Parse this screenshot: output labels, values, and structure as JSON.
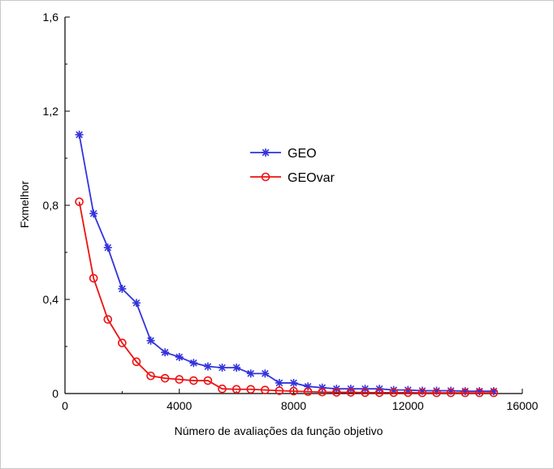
{
  "chart_data": {
    "type": "line",
    "title": "",
    "xlabel": "Número de avaliações da função objetivo",
    "ylabel": "Fxmelhor",
    "xlim": [
      0,
      16000
    ],
    "ylim": [
      0,
      1.6
    ],
    "xticks": [
      0,
      4000,
      8000,
      12000,
      16000
    ],
    "xtick_labels": [
      "0",
      "4000",
      "8000",
      "12000",
      "16000"
    ],
    "yticks": [
      0,
      0.4,
      0.8,
      1.2,
      1.6
    ],
    "ytick_labels": [
      "0",
      "0,4",
      "0,8",
      "1,2",
      "1,6"
    ],
    "grid": false,
    "legend_position": "upper-center-right",
    "x": [
      500,
      1000,
      1500,
      2000,
      2500,
      3000,
      3500,
      4000,
      4500,
      5000,
      5500,
      6000,
      6500,
      7000,
      7500,
      8000,
      8500,
      9000,
      9500,
      10000,
      10500,
      11000,
      11500,
      12000,
      12500,
      13000,
      13500,
      14000,
      14500,
      15000
    ],
    "series": [
      {
        "name": "GEO",
        "color": "#3333dd",
        "marker": "asterisk",
        "values": [
          1.1,
          0.765,
          0.62,
          0.445,
          0.385,
          0.225,
          0.175,
          0.155,
          0.13,
          0.115,
          0.11,
          0.11,
          0.085,
          0.085,
          0.045,
          0.045,
          0.03,
          0.025,
          0.02,
          0.02,
          0.02,
          0.02,
          0.015,
          0.015,
          0.012,
          0.012,
          0.012,
          0.01,
          0.01,
          0.01
        ]
      },
      {
        "name": "GEOvar",
        "color": "#ee1111",
        "marker": "circle",
        "values": [
          0.815,
          0.49,
          0.315,
          0.215,
          0.135,
          0.075,
          0.065,
          0.06,
          0.055,
          0.055,
          0.02,
          0.018,
          0.018,
          0.015,
          0.012,
          0.01,
          0.008,
          0.006,
          0.005,
          0.005,
          0.004,
          0.004,
          0.004,
          0.004,
          0.003,
          0.003,
          0.003,
          0.003,
          0.003,
          0.003
        ]
      }
    ]
  }
}
